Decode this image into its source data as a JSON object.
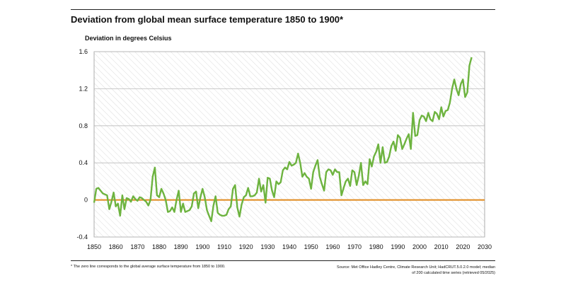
{
  "title": "Deviation from global mean surface temperature 1850 to 1900*",
  "footnote": "* The zero line corresponds to the global average surface temperature from 1850 to 1900.",
  "source": {
    "line1": "Source: Met Office Hadley Centre, Climate Research Unit; HadCRUT.5.0.2.0 model; median",
    "line2": "of 200 calculated time series (retrieved 05/2025)"
  },
  "chart_data": {
    "type": "line",
    "title": "Deviation from global mean surface temperature 1850 to 1900*",
    "xlabel": "",
    "ylabel": "Deviation in degrees Celsius",
    "xlim": [
      1850,
      2030
    ],
    "ylim": [
      -0.4,
      1.6
    ],
    "x_ticks": [
      "1850",
      "1860",
      "1870",
      "1880",
      "1890",
      "1900",
      "1910",
      "1920",
      "1930",
      "1940",
      "1950",
      "1960",
      "1970",
      "1980",
      "1990",
      "2000",
      "2010",
      "2020",
      "2030"
    ],
    "y_ticks": [
      "-0.4",
      "0",
      "0.4",
      "0.8",
      "1.2",
      "1.6"
    ],
    "grid": "hatched background with horizontal gridlines",
    "colors": {
      "series": "#6db33f",
      "zero_line": "#e08a1e",
      "grid": "#bbbbbb",
      "hatch": "#dddddd"
    },
    "series": [
      {
        "x": [
          1850,
          1851,
          1852,
          1853,
          1854,
          1855,
          1856,
          1857,
          1858,
          1859,
          1860,
          1861,
          1862,
          1863,
          1864,
          1865,
          1866,
          1867,
          1868,
          1869,
          1870,
          1871,
          1872,
          1873,
          1874,
          1875,
          1876,
          1877,
          1878,
          1879,
          1880,
          1881,
          1882,
          1883,
          1884,
          1885,
          1886,
          1887,
          1888,
          1889,
          1890,
          1891,
          1892,
          1893,
          1894,
          1895,
          1896,
          1897,
          1898,
          1899,
          1900,
          1901,
          1902,
          1903,
          1904,
          1905,
          1906,
          1907,
          1908,
          1909,
          1910,
          1911,
          1912,
          1913,
          1914,
          1915,
          1916,
          1917,
          1918,
          1919,
          1920,
          1921,
          1922,
          1923,
          1924,
          1925,
          1926,
          1927,
          1928,
          1929,
          1930,
          1931,
          1932,
          1933,
          1934,
          1935,
          1936,
          1937,
          1938,
          1939,
          1940,
          1941,
          1942,
          1943,
          1944,
          1945,
          1946,
          1947,
          1948,
          1949,
          1950,
          1951,
          1952,
          1953,
          1954,
          1955,
          1956,
          1957,
          1958,
          1959,
          1960,
          1961,
          1962,
          1963,
          1964,
          1965,
          1966,
          1967,
          1968,
          1969,
          1970,
          1971,
          1972,
          1973,
          1974,
          1975,
          1976,
          1977,
          1978,
          1979,
          1980,
          1981,
          1982,
          1983,
          1984,
          1985,
          1986,
          1987,
          1988,
          1989,
          1990,
          1991,
          1992,
          1993,
          1994,
          1995,
          1996,
          1997,
          1998,
          1999,
          2000,
          2001,
          2002,
          2003,
          2004,
          2005,
          2006,
          2007,
          2008,
          2009,
          2010,
          2011,
          2012,
          2013,
          2014,
          2015,
          2016,
          2017,
          2018,
          2019,
          2020,
          2021,
          2022,
          2023,
          2024
        ],
        "y": [
          -0.03,
          0.12,
          0.13,
          0.1,
          0.07,
          0.06,
          0.05,
          -0.1,
          -0.02,
          0.08,
          -0.07,
          -0.04,
          -0.17,
          0.05,
          -0.1,
          0.02,
          0.01,
          -0.02,
          0.04,
          0.01,
          -0.01,
          0.03,
          0.02,
          0.0,
          -0.02,
          -0.06,
          0.0,
          0.25,
          0.35,
          0.05,
          0.03,
          0.12,
          0.07,
          0.0,
          -0.13,
          -0.12,
          -0.08,
          -0.13,
          0.0,
          0.1,
          -0.13,
          -0.04,
          -0.13,
          -0.12,
          -0.11,
          -0.07,
          0.07,
          0.09,
          -0.09,
          0.03,
          0.12,
          0.03,
          -0.11,
          -0.17,
          -0.23,
          -0.06,
          0.04,
          -0.14,
          -0.16,
          -0.17,
          -0.17,
          -0.16,
          -0.1,
          -0.07,
          0.12,
          0.16,
          -0.08,
          -0.18,
          -0.05,
          0.03,
          0.05,
          0.13,
          0.04,
          0.04,
          0.05,
          0.08,
          0.23,
          0.09,
          0.16,
          -0.03,
          0.24,
          0.23,
          0.1,
          0.03,
          0.2,
          0.17,
          0.19,
          0.32,
          0.35,
          0.33,
          0.41,
          0.37,
          0.38,
          0.4,
          0.5,
          0.4,
          0.25,
          0.29,
          0.25,
          0.23,
          0.12,
          0.3,
          0.37,
          0.43,
          0.25,
          0.17,
          0.1,
          0.3,
          0.33,
          0.32,
          0.27,
          0.33,
          0.3,
          0.3,
          0.05,
          0.13,
          0.2,
          0.23,
          0.15,
          0.32,
          0.3,
          0.16,
          0.26,
          0.4,
          0.16,
          0.2,
          0.17,
          0.44,
          0.36,
          0.47,
          0.52,
          0.6,
          0.4,
          0.57,
          0.4,
          0.41,
          0.47,
          0.58,
          0.63,
          0.53,
          0.7,
          0.67,
          0.55,
          0.6,
          0.66,
          0.71,
          0.55,
          0.94,
          0.69,
          0.7,
          0.86,
          0.91,
          0.9,
          0.85,
          0.94,
          0.87,
          0.85,
          0.95,
          0.93,
          0.87,
          1.0,
          0.9,
          0.96,
          0.97,
          1.05,
          1.2,
          1.3,
          1.2,
          1.13,
          1.25,
          1.3,
          1.11,
          1.16,
          1.45,
          1.54
        ]
      }
    ]
  }
}
